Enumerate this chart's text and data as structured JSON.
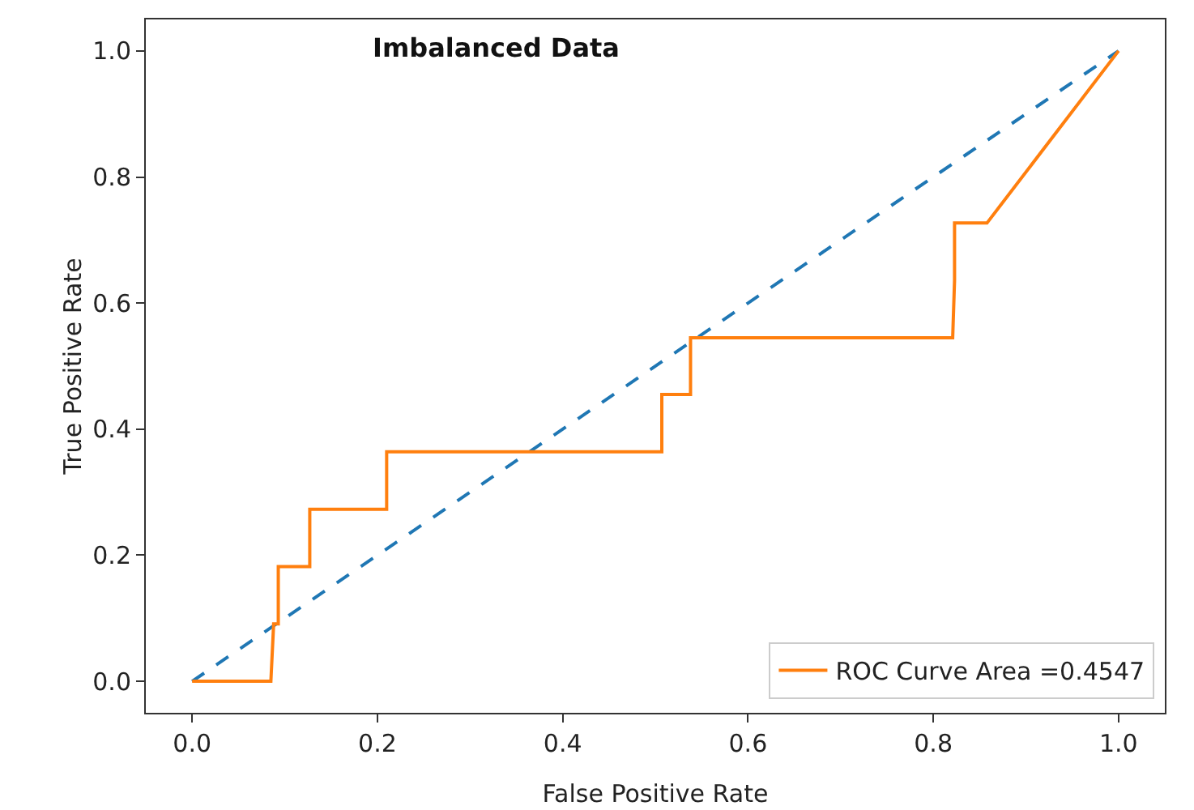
{
  "chart_data": {
    "type": "line",
    "xlabel": "False Positive Rate",
    "ylabel": "True Positive Rate",
    "annotations": [
      "Imbalanced Data"
    ],
    "series": [
      {
        "color": "#1f77b4",
        "line_style": "dashed",
        "x": [
          0,
          1
        ],
        "values": [
          0,
          1
        ]
      },
      {
        "name": "ROC Curve Area =0.4547",
        "color": "#ff7f0e",
        "line_style": "solid",
        "x": [
          0,
          0.085,
          0.088,
          0.093,
          0.093,
          0.127,
          0.127,
          0.21,
          0.21,
          0.507,
          0.507,
          0.538,
          0.538,
          0.821,
          0.823,
          0.823,
          0.858,
          1
        ],
        "values": [
          0,
          0,
          0.091,
          0.091,
          0.182,
          0.182,
          0.273,
          0.273,
          0.364,
          0.364,
          0.455,
          0.455,
          0.545,
          0.545,
          0.636,
          0.727,
          0.727,
          1
        ]
      }
    ],
    "xlim": [
      -0.05,
      1.05
    ],
    "ylim": [
      -0.05,
      1.05
    ],
    "xticks": [
      {
        "value": 0,
        "label": "0.0"
      },
      {
        "value": 0.2,
        "label": "0.2"
      },
      {
        "value": 0.4,
        "label": "0.4"
      },
      {
        "value": 0.6,
        "label": "0.6"
      },
      {
        "value": 0.8,
        "label": "0.8"
      },
      {
        "value": 1,
        "label": "1.0"
      }
    ],
    "yticks": [
      {
        "value": 0,
        "label": "0.0"
      },
      {
        "value": 0.2,
        "label": "0.2"
      },
      {
        "value": 0.4,
        "label": "0.4"
      },
      {
        "value": 0.6,
        "label": "0.6"
      },
      {
        "value": 0.8,
        "label": "0.8"
      },
      {
        "value": 1,
        "label": "1.0"
      }
    ],
    "grid": false,
    "legend": "bottom right",
    "marker": "none"
  }
}
